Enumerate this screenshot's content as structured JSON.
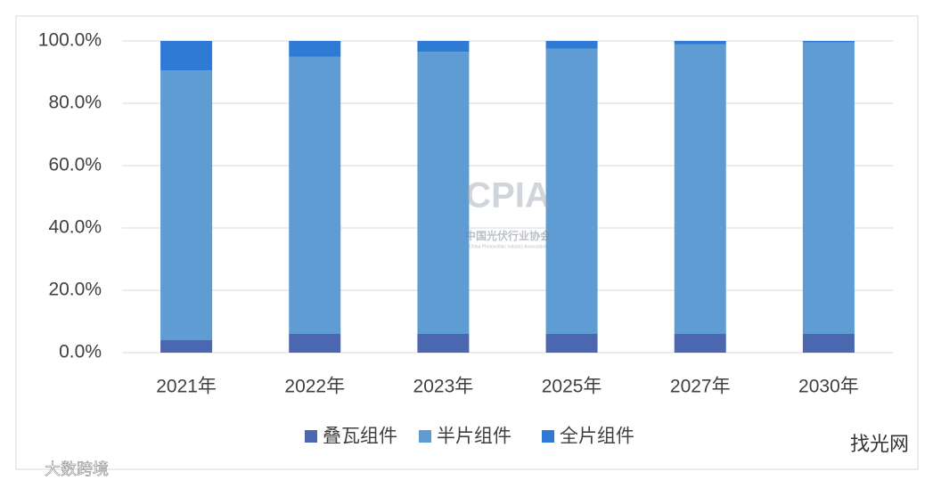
{
  "chart_data": {
    "type": "stacked_bar",
    "categories": [
      "2021年",
      "2022年",
      "2023年",
      "2025年",
      "2027年",
      "2030年"
    ],
    "series": [
      {
        "name": "叠瓦组件",
        "color": "#4a67b0",
        "values": [
          4,
          6,
          6,
          6,
          6,
          6
        ]
      },
      {
        "name": "半片组件",
        "color": "#5f9cd4",
        "values": [
          86.5,
          89,
          90.5,
          91.5,
          93,
          93.5
        ]
      },
      {
        "name": "全片组件",
        "color": "#2e7bd6",
        "values": [
          9.5,
          5,
          3.5,
          2.5,
          1,
          0.5
        ]
      }
    ],
    "ylim": [
      0,
      100
    ],
    "yticks": [
      {
        "value": 0,
        "label": "0.0%"
      },
      {
        "value": 20,
        "label": "20.0%"
      },
      {
        "value": 40,
        "label": "40.0%"
      },
      {
        "value": 60,
        "label": "60.0%"
      },
      {
        "value": 80,
        "label": "80.0%"
      },
      {
        "value": 100,
        "label": "100.0%"
      }
    ],
    "grid": true,
    "legend": "bottom",
    "annotations": [
      "CPIA",
      "中国光伏行业协会",
      "China Photovoltaic Industry Association",
      "找光网",
      "大数跨境"
    ]
  }
}
